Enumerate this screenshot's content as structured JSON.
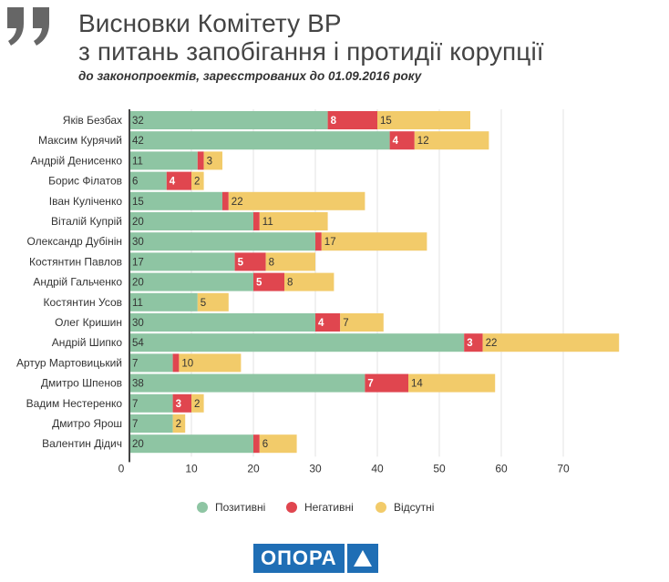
{
  "header": {
    "title_line1": "Висновки Комітету ВР",
    "title_line2": "з питань запобігання і протидії корупції",
    "subtitle": "до законопроектів, зареєстрованих до 01.09.2016 року"
  },
  "logo": {
    "text": "ОПОРА",
    "mark_icon": "triangle-icon"
  },
  "colors": {
    "positive": "#8ec5a3",
    "negative": "#e0464f",
    "absent": "#f2cb6a",
    "grid": "#e3e3e3",
    "axis": "#444444"
  },
  "chart_data": {
    "type": "bar",
    "orientation": "horizontal",
    "stacked": true,
    "title": "Висновки Комітету ВР з питань запобігання і протидії корупції",
    "subtitle": "до законопроектів, зареєстрованих до 01.09.2016 року",
    "xlabel": "",
    "ylabel": "",
    "xlim": [
      0,
      80
    ],
    "xticks": [
      0,
      10,
      20,
      30,
      40,
      50,
      60,
      70
    ],
    "grid": true,
    "legend_position": "bottom",
    "categories": [
      "Яків Безбах",
      "Максим Курячий",
      "Андрій Денисенко",
      "Борис Філатов",
      "Іван Куліченко",
      "Віталій Купрій",
      "Олександр Дубінін",
      "Костянтин Павлов",
      "Андрій Гальченко",
      "Костянтин Усов",
      "Олег Кришин",
      "Андрій Шипко",
      "Артур Мартовицький",
      "Дмитро Шпенов",
      "Вадим Нестеренко",
      "Дмитро Ярош",
      "Валентин Дідич"
    ],
    "series": [
      {
        "name": "Позитивні",
        "values": [
          32,
          42,
          11,
          6,
          15,
          20,
          30,
          17,
          20,
          11,
          30,
          54,
          7,
          38,
          7,
          7,
          20
        ]
      },
      {
        "name": "Негативні",
        "values": [
          8,
          4,
          1,
          4,
          1,
          1,
          1,
          5,
          5,
          0,
          4,
          3,
          1,
          7,
          3,
          0,
          1
        ]
      },
      {
        "name": "Відсутні",
        "values": [
          15,
          12,
          3,
          2,
          22,
          11,
          17,
          8,
          8,
          5,
          7,
          22,
          10,
          14,
          2,
          2,
          6
        ]
      }
    ],
    "labeled_min": 2
  }
}
